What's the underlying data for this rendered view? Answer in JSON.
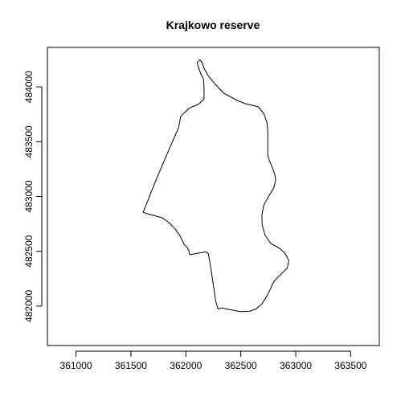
{
  "chart_data": {
    "type": "line",
    "title": "Krajkowo reserve",
    "xlabel": "",
    "ylabel": "",
    "xlim": [
      360740,
      363760
    ],
    "ylim": [
      481640,
      484360
    ],
    "x_ticks": [
      361000,
      361500,
      362000,
      362500,
      363000,
      363500
    ],
    "x_tick_labels": [
      "361000",
      "361500",
      "362000",
      "362500",
      "363000",
      "363500"
    ],
    "y_ticks": [
      482000,
      482500,
      483000,
      483500,
      484000
    ],
    "y_tick_labels": [
      "482000",
      "482500",
      "483000",
      "483500",
      "484000"
    ],
    "grid": false,
    "legend": "none",
    "line_color": "#000000",
    "series": [
      {
        "x": [
          362128,
          362147,
          362166,
          362206,
          362271,
          362344,
          362467,
          362541,
          362659,
          362709,
          362739,
          362746,
          362746,
          362746,
          362746,
          362761,
          362786,
          362807,
          362818,
          362800,
          362750,
          362709,
          362692,
          362694,
          362720,
          362772,
          362855,
          362899,
          362937,
          362923,
          362849,
          362800,
          362777,
          362733,
          362692,
          362640,
          362578,
          362491,
          362401,
          362328,
          362311,
          362293,
          362271,
          362251,
          362224,
          362204,
          362182,
          362034,
          362026,
          362011,
          361984,
          361944,
          361905,
          361860,
          361823,
          361789,
          361734,
          361672,
          361611,
          361659,
          361720,
          361787,
          361857,
          361935,
          361952,
          361986,
          362038,
          362110,
          362165,
          362165,
          362162,
          362134,
          362115,
          362103,
          362128
        ],
        "y": [
          484248,
          484221,
          484169,
          484097,
          484018,
          483943,
          483876,
          483847,
          483818,
          483755,
          483670,
          483587,
          483497,
          483432,
          483369,
          483327,
          483264,
          483208,
          483154,
          483077,
          482996,
          482921,
          482834,
          482743,
          482647,
          482572,
          482526,
          482485,
          482416,
          482347,
          482276,
          482223,
          482174,
          482085,
          482020,
          481974,
          481952,
          481950,
          481967,
          481983,
          481979,
          481972,
          482046,
          482186,
          482369,
          482480,
          482495,
          482469,
          482508,
          482536,
          482564,
          482645,
          482701,
          482747,
          482780,
          482803,
          482820,
          482836,
          482855,
          482976,
          483130,
          483289,
          483453,
          483630,
          483727,
          483765,
          483810,
          483839,
          483888,
          483980,
          484065,
          484125,
          484180,
          484221,
          484248
        ]
      }
    ]
  }
}
